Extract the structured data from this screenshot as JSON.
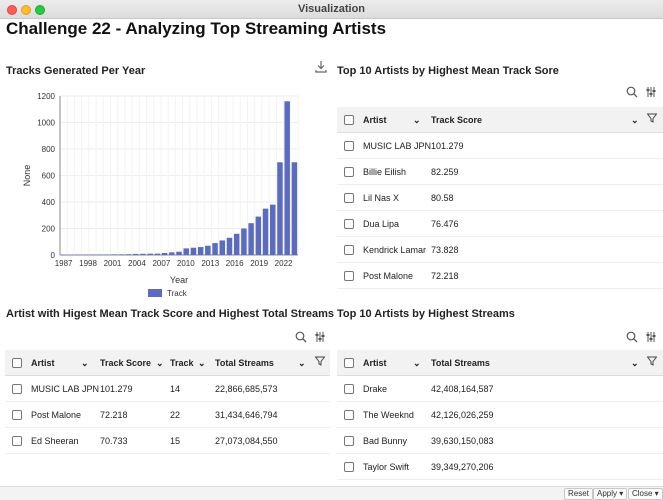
{
  "window": {
    "title": "Visualization"
  },
  "page_title": "Challenge 22 - Analyzing Top Streaming Artists",
  "chart_section": {
    "title": "Tracks Generated Per Year"
  },
  "top10_score": {
    "title": "Top 10 Artists by Highest Mean Track Sore",
    "columns": [
      "Artist",
      "Track Score"
    ],
    "rows": [
      [
        "MUSIC LAB JPN",
        "101.279"
      ],
      [
        "Billie Eilish",
        "82.259"
      ],
      [
        "Lil Nas X",
        "80.58"
      ],
      [
        "Dua Lipa",
        "76.476"
      ],
      [
        "Kendrick Lamar",
        "73.828"
      ],
      [
        "Post Malone",
        "72.218"
      ]
    ]
  },
  "mean_total": {
    "title": "Artist with Higest Mean Track Score and Highest Total Streams",
    "columns": [
      "Artist",
      "Track Score",
      "Track",
      "Total Streams"
    ],
    "rows": [
      [
        "MUSIC LAB JPN",
        "101.279",
        "14",
        "22,866,685,573"
      ],
      [
        "Post Malone",
        "72.218",
        "22",
        "31,434,646,794"
      ],
      [
        "Ed Sheeran",
        "70.733",
        "15",
        "27,073,084,550"
      ]
    ]
  },
  "top10_streams": {
    "title": "Top 10 Artists by Highest Streams",
    "columns": [
      "Artist",
      "Total Streams"
    ],
    "rows": [
      [
        "Drake",
        "42,408,164,587"
      ],
      [
        "The Weeknd",
        "42,126,026,259"
      ],
      [
        "Bad Bunny",
        "39,630,150,083"
      ],
      [
        "Taylor Swift",
        "39,349,270,206"
      ]
    ]
  },
  "footer": {
    "reset": "Reset",
    "apply": "Apply ▾",
    "close": "Close ▾"
  },
  "chart_data": {
    "type": "bar",
    "xlabel": "Year",
    "ylabel": "None",
    "ylim": [
      0,
      1200
    ],
    "yticks": [
      0,
      200,
      400,
      600,
      800,
      1000,
      1200
    ],
    "xtick_labels": [
      "1987",
      "1998",
      "2001",
      "2004",
      "2007",
      "2010",
      "2013",
      "2016",
      "2019",
      "2022"
    ],
    "legend": "Track",
    "color": "#5b6bbf",
    "series": [
      {
        "name": "Track",
        "values": [
          2,
          3,
          3,
          3,
          4,
          4,
          4,
          5,
          5,
          6,
          8,
          9,
          10,
          10,
          15,
          20,
          25,
          50,
          55,
          60,
          70,
          90,
          110,
          130,
          160,
          200,
          240,
          290,
          350,
          380,
          700,
          1160,
          700
        ]
      }
    ]
  }
}
